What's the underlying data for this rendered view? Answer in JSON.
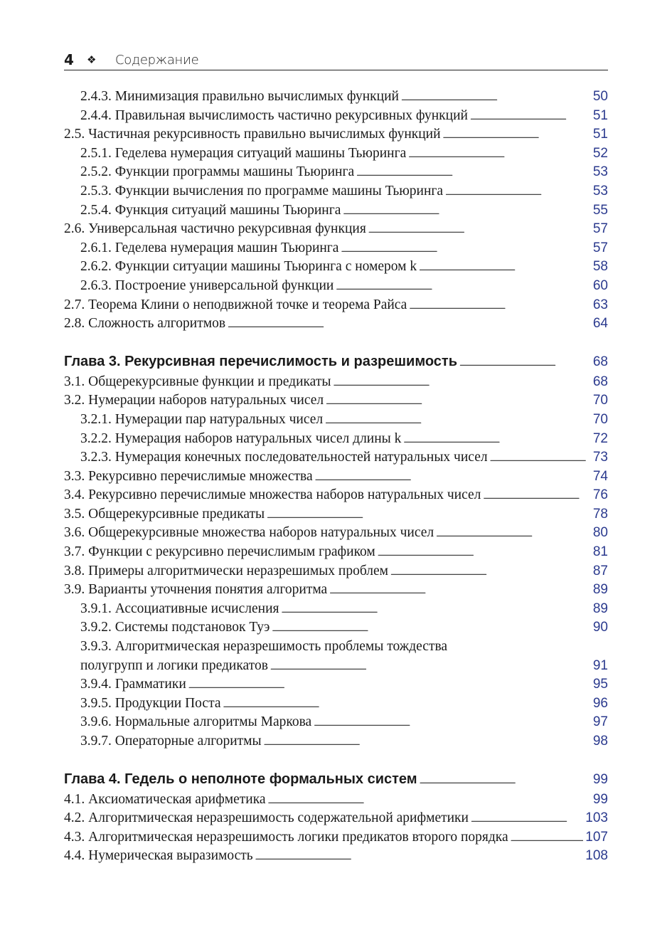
{
  "header": {
    "page_number": "4",
    "ornament": "❖",
    "title": "Содержание"
  },
  "sections": [
    {
      "entries": [
        {
          "level": 3,
          "title": "2.4.3. Минимизация правильно вычислимых функций",
          "page": "50"
        },
        {
          "level": 3,
          "title": "2.4.4. Правильная вычислимость частично рекурсивных функций",
          "page": "51"
        },
        {
          "level": 2,
          "title": "2.5. Частичная рекурсивность правильно вычислимых функций",
          "page": "51"
        },
        {
          "level": 3,
          "title": "2.5.1. Геделева нумерация ситуаций машины Тьюринга",
          "page": "52"
        },
        {
          "level": 3,
          "title": "2.5.2. Функции программы машины Тьюринга",
          "page": "53"
        },
        {
          "level": 3,
          "title": "2.5.3. Функции вычисления по программе машины Тьюринга",
          "page": "53"
        },
        {
          "level": 3,
          "title": "2.5.4. Функция ситуаций машины Тьюринга",
          "page": "55"
        },
        {
          "level": 2,
          "title": "2.6. Универсальная частично рекурсивная функция",
          "page": "57"
        },
        {
          "level": 3,
          "title": "2.6.1. Геделева нумерация машин Тьюринга",
          "page": "57"
        },
        {
          "level": 3,
          "title": "2.6.2. Функции ситуации машины Тьюринга с номером k",
          "page": "58"
        },
        {
          "level": 3,
          "title": "2.6.3. Построение универсальной функции",
          "page": "60"
        },
        {
          "level": 2,
          "title": "2.7. Теорема Клини о неподвижной точке и теорема Райса",
          "page": "63"
        },
        {
          "level": 2,
          "title": "2.8. Сложность алгоритмов",
          "page": "64"
        }
      ]
    },
    {
      "chapter": {
        "title": "Глава 3. Рекурсивная перечислимость и разрешимость",
        "page": "68"
      },
      "entries": [
        {
          "level": 2,
          "title": "3.1. Общерекурсивные функции и предикаты",
          "page": "68"
        },
        {
          "level": 2,
          "title": "3.2. Нумерации наборов натуральных чисел",
          "page": "70"
        },
        {
          "level": 3,
          "title": "3.2.1. Нумерации пар натуральных чисел",
          "page": "70"
        },
        {
          "level": 3,
          "title": "3.2.2. Нумерация наборов натуральных чисел длины k",
          "page": "72"
        },
        {
          "level": 3,
          "title": "3.2.3. Нумерация конечных последовательностей натуральных чисел",
          "page": "73"
        },
        {
          "level": 2,
          "title": "3.3. Рекурсивно перечислимые множества",
          "page": "74"
        },
        {
          "level": 2,
          "title": "3.4. Рекурсивно перечислимые множества наборов натуральных чисел",
          "page": "76"
        },
        {
          "level": 2,
          "title": "3.5. Общерекурсивные предикаты",
          "page": "78"
        },
        {
          "level": 2,
          "title": "3.6. Общерекурсивные множества наборов натуральных чисел",
          "page": "80"
        },
        {
          "level": 2,
          "title": "3.7. Функции с рекурсивно перечислимым графиком",
          "page": "81"
        },
        {
          "level": 2,
          "title": "3.8. Примеры алгоритмически неразрешимых проблем",
          "page": "87"
        },
        {
          "level": 2,
          "title": "3.9. Варианты уточнения понятия алгоритма",
          "page": "89"
        },
        {
          "level": 3,
          "title": "3.9.1. Ассоциативные исчисления",
          "page": "89"
        },
        {
          "level": 3,
          "title": "3.9.2. Системы подстановок Туэ",
          "page": "90"
        },
        {
          "level": 3,
          "title": "3.9.3. Алгоритмическая неразрешимость проблемы тождества",
          "page": ""
        },
        {
          "level": 3,
          "title": "полугрупп и логики предикатов",
          "page": "91"
        },
        {
          "level": 3,
          "title": "3.9.4. Грамматики",
          "page": "95"
        },
        {
          "level": 3,
          "title": "3.9.5. Продукции Поста",
          "page": "96"
        },
        {
          "level": 3,
          "title": "3.9.6. Нормальные алгоритмы Маркова",
          "page": "97"
        },
        {
          "level": 3,
          "title": "3.9.7. Операторные алгоритмы",
          "page": "98"
        }
      ]
    },
    {
      "chapter": {
        "title": "Глава 4. Гедель о неполноте формальных систем",
        "page": "99"
      },
      "entries": [
        {
          "level": 2,
          "title": "4.1. Аксиоматическая арифметика",
          "page": "99"
        },
        {
          "level": 2,
          "title": "4.2. Алгоритмическая неразрешимость содержательной арифметики",
          "page": "103"
        },
        {
          "level": 2,
          "title": "4.3. Алгоритмическая неразрешимость логики предикатов второго порядка",
          "page": "107"
        },
        {
          "level": 2,
          "title": "4.4. Нумерическая выразимость",
          "page": "108"
        }
      ]
    }
  ],
  "colors": {
    "page_number": "#2b3a8e",
    "text": "#1a1a1a"
  }
}
